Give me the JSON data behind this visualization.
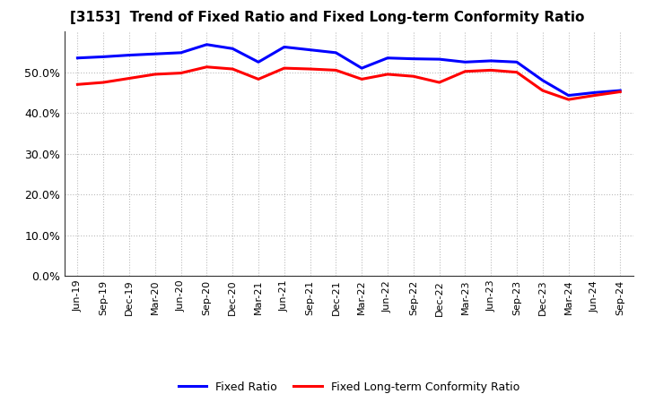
{
  "title": "[3153]  Trend of Fixed Ratio and Fixed Long-term Conformity Ratio",
  "x_labels": [
    "Jun-19",
    "Sep-19",
    "Dec-19",
    "Mar-20",
    "Jun-20",
    "Sep-20",
    "Dec-20",
    "Mar-21",
    "Jun-21",
    "Sep-21",
    "Dec-21",
    "Mar-22",
    "Jun-22",
    "Sep-22",
    "Dec-22",
    "Mar-23",
    "Jun-23",
    "Sep-23",
    "Dec-23",
    "Mar-24",
    "Jun-24",
    "Sep-24"
  ],
  "fixed_ratio": [
    53.5,
    53.8,
    54.2,
    54.5,
    54.8,
    56.8,
    55.8,
    52.5,
    56.2,
    55.5,
    54.8,
    51.0,
    53.5,
    53.3,
    53.2,
    52.5,
    52.8,
    52.5,
    48.0,
    44.3,
    45.0,
    45.5
  ],
  "fixed_lt_ratio": [
    47.0,
    47.5,
    48.5,
    49.5,
    49.8,
    51.3,
    50.8,
    48.3,
    51.0,
    50.8,
    50.5,
    48.3,
    49.5,
    49.0,
    47.5,
    50.2,
    50.5,
    50.0,
    45.5,
    43.3,
    44.3,
    45.2
  ],
  "fixed_ratio_color": "#0000FF",
  "fixed_lt_ratio_color": "#FF0000",
  "ylim": [
    0,
    60
  ],
  "yticks": [
    0,
    10,
    20,
    30,
    40,
    50
  ],
  "ytick_labels": [
    "0.0%",
    "10.0%",
    "20.0%",
    "30.0%",
    "40.0%",
    "50.0%"
  ],
  "grid_color": "#bbbbbb",
  "bg_color": "#ffffff",
  "plot_bg_color": "#ffffff",
  "legend_fixed": "Fixed Ratio",
  "legend_lt": "Fixed Long-term Conformity Ratio",
  "line_width": 2.2
}
